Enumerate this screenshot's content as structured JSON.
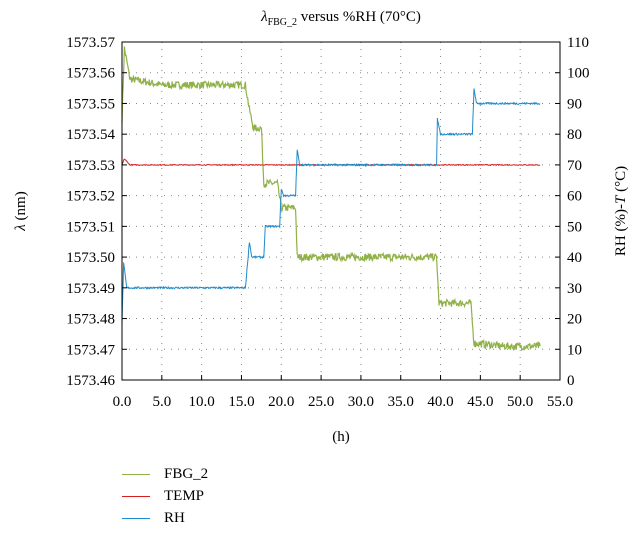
{
  "chart_data": {
    "type": "line",
    "title": {
      "symbol": "λ",
      "subscript": "FBG_2",
      "rest": " versus %RH (70°C)"
    },
    "xlabel": "(h)",
    "ylabel_left": "λ (nm)",
    "ylabel_right": "RH (%)-T (°C)",
    "xlim": [
      0,
      55
    ],
    "ylim_left": [
      1573.46,
      1573.57
    ],
    "ylim_right": [
      0,
      110
    ],
    "x_ticks": [
      "0.0",
      "5.0",
      "10.0",
      "15.0",
      "20.0",
      "25.0",
      "30.0",
      "35.0",
      "40.0",
      "45.0",
      "50.0",
      "55.0"
    ],
    "y_left_ticks": [
      "1573.57",
      "1573.56",
      "1573.55",
      "1573.54",
      "1573.53",
      "1573.52",
      "1573.51",
      "1573.50",
      "1573.49",
      "1573.48",
      "1573.47",
      "1573.46"
    ],
    "y_right_ticks": [
      "110",
      "100",
      "90",
      "80",
      "70",
      "60",
      "50",
      "40",
      "30",
      "20",
      "10",
      "0"
    ],
    "grid": "dotted",
    "legend_position": "bottom-left-outside",
    "series": [
      {
        "name": "FBG_2",
        "axis": "left",
        "color": "#8fb147",
        "noise": 0.0012,
        "points": [
          [
            0.0,
            1573.545
          ],
          [
            0.3,
            1573.568
          ],
          [
            1.0,
            1573.558
          ],
          [
            5.0,
            1573.556
          ],
          [
            10.0,
            1573.556
          ],
          [
            15.5,
            1573.556
          ],
          [
            16.0,
            1573.548
          ],
          [
            16.5,
            1573.542
          ],
          [
            17.5,
            1573.542
          ],
          [
            17.8,
            1573.524
          ],
          [
            19.5,
            1573.524
          ],
          [
            20.0,
            1573.516
          ],
          [
            21.8,
            1573.516
          ],
          [
            22.0,
            1573.5
          ],
          [
            25.0,
            1573.5
          ],
          [
            30.0,
            1573.5
          ],
          [
            35.0,
            1573.5
          ],
          [
            39.5,
            1573.5
          ],
          [
            39.8,
            1573.485
          ],
          [
            43.8,
            1573.485
          ],
          [
            44.2,
            1573.472
          ],
          [
            48.0,
            1573.471
          ],
          [
            52.5,
            1573.471
          ]
        ]
      },
      {
        "name": "TEMP",
        "axis": "right",
        "color": "#d62020",
        "noise": 0.15,
        "points": [
          [
            0.0,
            70
          ],
          [
            0.3,
            72
          ],
          [
            1.0,
            70
          ],
          [
            10.0,
            70
          ],
          [
            20.0,
            70
          ],
          [
            30.0,
            70
          ],
          [
            40.0,
            70
          ],
          [
            52.5,
            70
          ]
        ]
      },
      {
        "name": "RH",
        "axis": "right",
        "color": "#1f8ac8",
        "noise": 0.3,
        "points": [
          [
            0.0,
            18
          ],
          [
            0.2,
            38
          ],
          [
            0.6,
            30
          ],
          [
            15.5,
            30
          ],
          [
            16.0,
            45
          ],
          [
            16.3,
            40
          ],
          [
            17.8,
            40
          ],
          [
            18.0,
            50
          ],
          [
            19.8,
            50
          ],
          [
            20.0,
            62
          ],
          [
            20.3,
            60
          ],
          [
            21.8,
            60
          ],
          [
            22.0,
            75
          ],
          [
            22.3,
            70
          ],
          [
            39.5,
            70
          ],
          [
            39.6,
            85
          ],
          [
            40.0,
            80
          ],
          [
            44.0,
            80
          ],
          [
            44.2,
            95
          ],
          [
            44.5,
            90
          ],
          [
            52.5,
            90
          ]
        ]
      }
    ]
  }
}
